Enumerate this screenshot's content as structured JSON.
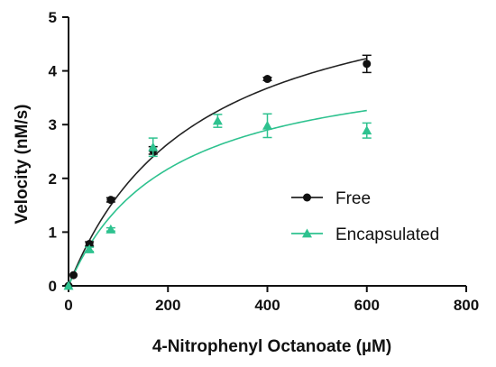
{
  "chart_data": {
    "type": "scatter",
    "xlabel": "4-Nitrophenyl Octanoate (µM)",
    "ylabel": "Velocity (nM/s)",
    "xlim": [
      0,
      800
    ],
    "ylim": [
      0,
      5
    ],
    "xticks": [
      0,
      200,
      400,
      600,
      800
    ],
    "yticks": [
      0,
      1,
      2,
      3,
      4,
      5
    ],
    "grid": false,
    "legend_position": "center-right",
    "series": [
      {
        "name": "Free",
        "marker": "circle",
        "color": "#111111",
        "curve_color": "#222222",
        "x": [
          0,
          10,
          42,
          85,
          170,
          400,
          600
        ],
        "y": [
          0,
          0.2,
          0.78,
          1.6,
          2.52,
          3.85,
          4.13
        ],
        "error": [
          0,
          0,
          0.04,
          0.04,
          0.07,
          0.03,
          0.16
        ],
        "fit": {
          "model": "michaelis-menten",
          "vmax": 6.05,
          "km": 258
        }
      },
      {
        "name": "Encapsulated",
        "marker": "triangle",
        "color": "#2ec28f",
        "curve_color": "#2ec28f",
        "x": [
          0,
          42,
          85,
          170,
          300,
          400,
          600
        ],
        "y": [
          0,
          0.68,
          1.05,
          2.58,
          3.07,
          2.98,
          2.89
        ],
        "error": [
          0,
          0.04,
          0.03,
          0.17,
          0.12,
          0.22,
          0.14
        ],
        "fit": {
          "model": "michaelis-menten",
          "vmax": 4.35,
          "km": 200
        }
      }
    ]
  }
}
